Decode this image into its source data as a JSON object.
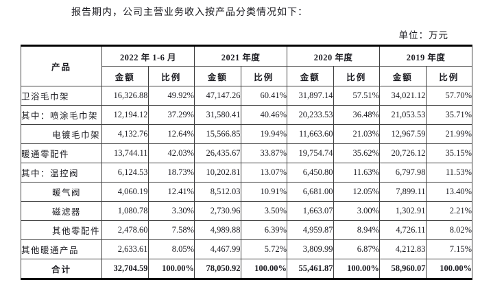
{
  "document": {
    "intro_text": "报告期内，公司主营业务收入按产品分类情况如下：",
    "unit_label": "单位：万元"
  },
  "table": {
    "product_header": "产品",
    "period_headers": [
      "2022 年 1-6 月",
      "2021 年度",
      "2020 年度",
      "2019 年度"
    ],
    "sub_headers": {
      "amount": "金额",
      "ratio": "比例"
    },
    "rows": [
      {
        "product": "卫浴毛巾架",
        "indent": false,
        "is_total": false,
        "values": [
          "16,326.88",
          "49.92%",
          "47,147.26",
          "60.41%",
          "31,897.14",
          "57.51%",
          "34,021.12",
          "57.70%"
        ]
      },
      {
        "product": "其中：喷涂毛巾架",
        "indent": false,
        "is_total": false,
        "values": [
          "12,194.12",
          "37.29%",
          "31,580.41",
          "40.46%",
          "20,233.53",
          "36.48%",
          "21,053.53",
          "35.71%"
        ]
      },
      {
        "product": "电镀毛巾架",
        "indent": true,
        "is_total": false,
        "values": [
          "4,132.76",
          "12.64%",
          "15,566.85",
          "19.94%",
          "11,663.60",
          "21.03%",
          "12,967.59",
          "21.99%"
        ]
      },
      {
        "product": "暖通零配件",
        "indent": false,
        "is_total": false,
        "values": [
          "13,744.11",
          "42.03%",
          "26,435.67",
          "33.87%",
          "19,754.74",
          "35.62%",
          "20,726.12",
          "35.15%"
        ]
      },
      {
        "product": "其中：温控阀",
        "indent": false,
        "is_total": false,
        "values": [
          "6,124.53",
          "18.73%",
          "10,202.81",
          "13.07%",
          "6,450.80",
          "11.63%",
          "6,797.98",
          "11.53%"
        ]
      },
      {
        "product": "暖气阀",
        "indent": true,
        "is_total": false,
        "values": [
          "4,060.19",
          "12.41%",
          "8,512.03",
          "10.91%",
          "6,681.00",
          "12.05%",
          "7,899.11",
          "13.40%"
        ]
      },
      {
        "product": "磁滤器",
        "indent": true,
        "is_total": false,
        "values": [
          "1,080.78",
          "3.30%",
          "2,730.96",
          "3.50%",
          "1,663.07",
          "3.00%",
          "1,302.91",
          "2.21%"
        ]
      },
      {
        "product": "其他零配件",
        "indent": true,
        "is_total": false,
        "values": [
          "2,478.60",
          "7.58%",
          "4,989.88",
          "6.39%",
          "4,959.87",
          "8.94%",
          "4,726.11",
          "8.02%"
        ]
      },
      {
        "product": "其他暖通产品",
        "indent": false,
        "is_total": false,
        "values": [
          "2,633.61",
          "8.05%",
          "4,467.99",
          "5.72%",
          "3,809.99",
          "6.87%",
          "4,212.83",
          "7.15%"
        ]
      },
      {
        "product": "合计",
        "indent": false,
        "is_total": true,
        "values": [
          "32,704.59",
          "100.00%",
          "78,050.92",
          "100.00%",
          "55,461.87",
          "100.00%",
          "58,960.07",
          "100.00%"
        ]
      }
    ]
  }
}
